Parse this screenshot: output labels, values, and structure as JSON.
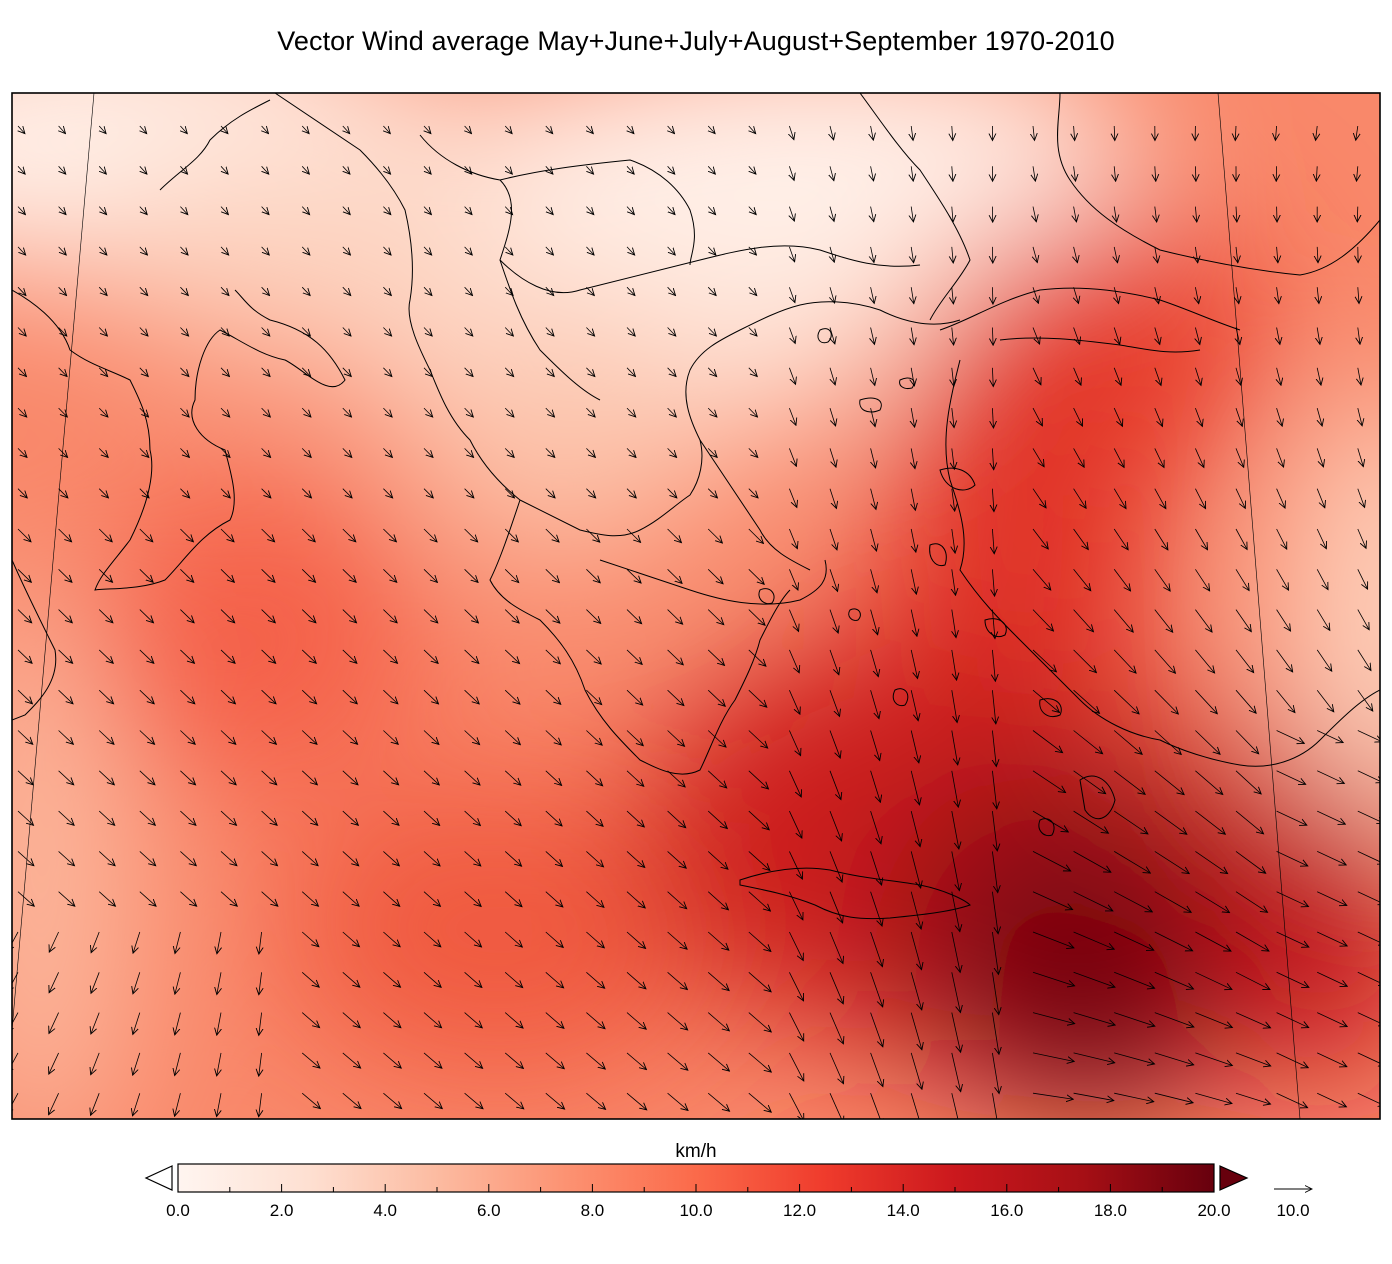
{
  "title": "Vector Wind average May+June+July+August+September 1970-2010",
  "colorbar": {
    "unit": "km/h",
    "min": 0.0,
    "max": 20.0,
    "ticks": [
      "0.0",
      "2.0",
      "4.0",
      "6.0",
      "8.0",
      "10.0",
      "12.0",
      "14.0",
      "16.0",
      "18.0",
      "20.0"
    ],
    "colors": [
      "#fff5f0",
      "#fee0d2",
      "#fcbba1",
      "#fc9272",
      "#fb6a4a",
      "#ef3b2c",
      "#cb181d",
      "#a50f15",
      "#67000d"
    ],
    "extend_low_color": "#ffffff",
    "extend_high_color": "#67000d"
  },
  "reference_vector": {
    "value_label": "10.0"
  }
}
